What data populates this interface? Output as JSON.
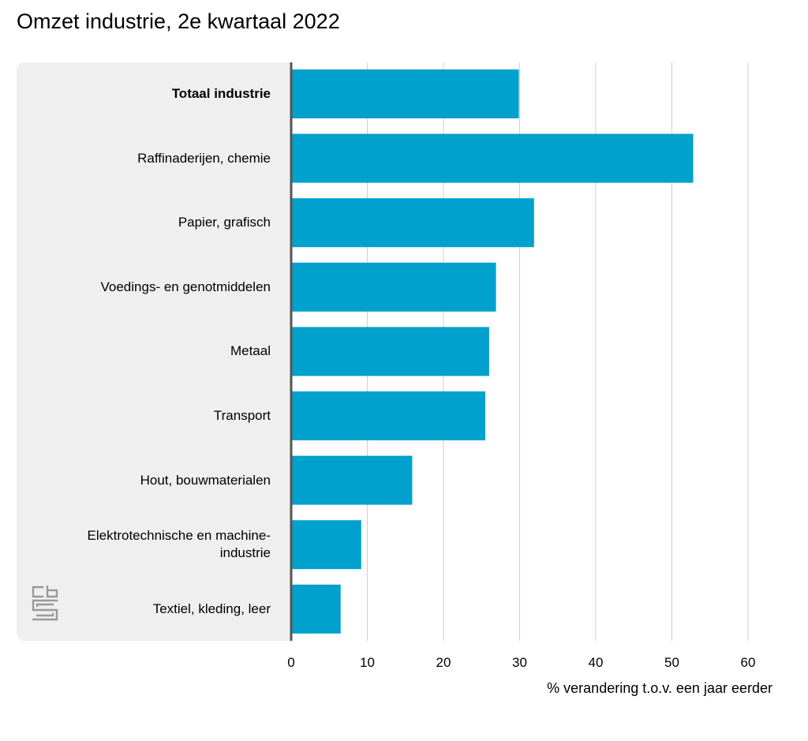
{
  "chart_data": {
    "type": "bar",
    "orientation": "horizontal",
    "title": "Omzet industrie, 2e kwartaal 2022",
    "xlabel": "% verandering t.o.v. een jaar eerder",
    "ylabel": "",
    "xlim": [
      0,
      60
    ],
    "xticks": [
      0,
      10,
      20,
      30,
      40,
      50,
      60
    ],
    "grid": "vertical",
    "bar_color": "#00a1cd",
    "categories": [
      "Totaal industrie",
      "Raffinaderijen, chemie",
      "Papier, grafisch",
      "Voedings- en genotmiddelen",
      "Metaal",
      "Transport",
      "Hout, bouwmaterialen",
      "Elektrotechnische en machine-industrie",
      "Textiel, kleding, leer"
    ],
    "category_lines": [
      [
        "Totaal industrie"
      ],
      [
        "Raffinaderijen, chemie"
      ],
      [
        "Papier, grafisch"
      ],
      [
        "Voedings- en genotmiddelen"
      ],
      [
        "Metaal"
      ],
      [
        "Transport"
      ],
      [
        "Hout, bouwmaterialen"
      ],
      [
        "Elektrotechnische en machine-",
        "industrie"
      ],
      [
        "Textiel, kleding, leer"
      ]
    ],
    "bold_categories": [
      "Totaal industrie"
    ],
    "values": [
      29.9,
      52.8,
      31.9,
      26.9,
      26.0,
      25.5,
      15.9,
      9.2,
      6.5
    ]
  },
  "logo": {
    "icon": "cbs-logo-icon",
    "color": "#999999"
  }
}
